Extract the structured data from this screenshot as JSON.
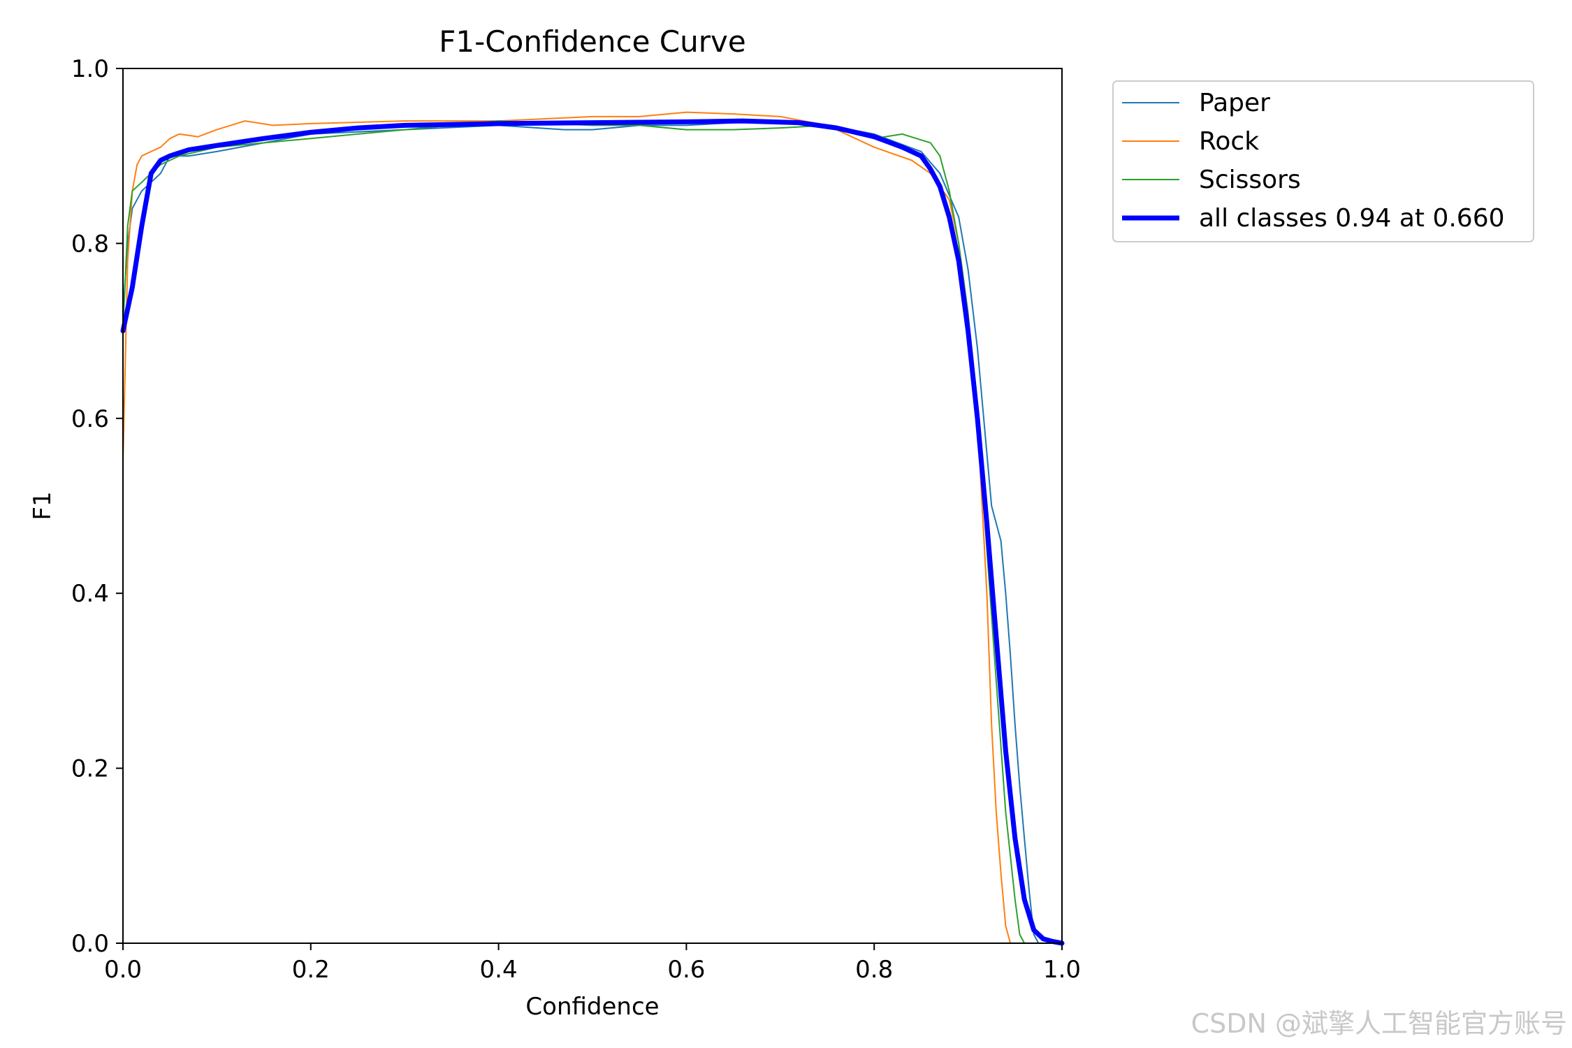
{
  "chart_data": {
    "type": "line",
    "title": "F1-Confidence Curve",
    "xlabel": "Confidence",
    "ylabel": "F1",
    "xlim": [
      0.0,
      1.0
    ],
    "ylim": [
      0.0,
      1.0
    ],
    "xticks": [
      "0.0",
      "0.2",
      "0.4",
      "0.6",
      "0.8",
      "1.0"
    ],
    "yticks": [
      "0.0",
      "0.2",
      "0.4",
      "0.6",
      "0.8",
      "1.0"
    ],
    "grid": false,
    "legend_position": "outside-top-right",
    "series": [
      {
        "name": "Paper",
        "color": "#1f77b4",
        "width": 2,
        "x": [
          0.0,
          0.005,
          0.01,
          0.02,
          0.03,
          0.04,
          0.05,
          0.07,
          0.1,
          0.15,
          0.2,
          0.3,
          0.4,
          0.47,
          0.5,
          0.55,
          0.6,
          0.65,
          0.7,
          0.75,
          0.8,
          0.85,
          0.87,
          0.89,
          0.9,
          0.91,
          0.92,
          0.925,
          0.93,
          0.935,
          0.94,
          0.945,
          0.95,
          0.955,
          0.96,
          0.965,
          0.97,
          0.975
        ],
        "y": [
          0.72,
          0.8,
          0.84,
          0.86,
          0.87,
          0.88,
          0.9,
          0.9,
          0.905,
          0.915,
          0.925,
          0.93,
          0.935,
          0.93,
          0.93,
          0.935,
          0.935,
          0.938,
          0.94,
          0.935,
          0.925,
          0.905,
          0.88,
          0.83,
          0.77,
          0.68,
          0.56,
          0.5,
          0.48,
          0.46,
          0.4,
          0.33,
          0.25,
          0.18,
          0.12,
          0.06,
          0.01,
          0.0
        ]
      },
      {
        "name": "Rock",
        "color": "#ff7f0e",
        "width": 2,
        "x": [
          0.0,
          0.005,
          0.01,
          0.015,
          0.02,
          0.03,
          0.04,
          0.05,
          0.06,
          0.08,
          0.1,
          0.13,
          0.16,
          0.2,
          0.3,
          0.4,
          0.5,
          0.55,
          0.6,
          0.65,
          0.7,
          0.75,
          0.8,
          0.84,
          0.86,
          0.88,
          0.89,
          0.9,
          0.91,
          0.92,
          0.925,
          0.93,
          0.935,
          0.94,
          0.945
        ],
        "y": [
          0.55,
          0.78,
          0.86,
          0.89,
          0.9,
          0.905,
          0.91,
          0.92,
          0.925,
          0.922,
          0.93,
          0.94,
          0.935,
          0.937,
          0.94,
          0.94,
          0.945,
          0.945,
          0.95,
          0.948,
          0.945,
          0.935,
          0.91,
          0.895,
          0.88,
          0.85,
          0.8,
          0.72,
          0.6,
          0.4,
          0.25,
          0.15,
          0.08,
          0.02,
          0.0
        ]
      },
      {
        "name": "Scissors",
        "color": "#2ca02c",
        "width": 2,
        "x": [
          0.0,
          0.005,
          0.01,
          0.02,
          0.03,
          0.04,
          0.06,
          0.08,
          0.1,
          0.15,
          0.2,
          0.3,
          0.4,
          0.5,
          0.55,
          0.6,
          0.65,
          0.7,
          0.75,
          0.8,
          0.83,
          0.86,
          0.87,
          0.88,
          0.89,
          0.9,
          0.91,
          0.92,
          0.93,
          0.94,
          0.95,
          0.955,
          0.96
        ],
        "y": [
          0.7,
          0.82,
          0.86,
          0.87,
          0.88,
          0.89,
          0.9,
          0.905,
          0.91,
          0.915,
          0.92,
          0.93,
          0.94,
          0.935,
          0.935,
          0.93,
          0.93,
          0.932,
          0.935,
          0.92,
          0.925,
          0.915,
          0.9,
          0.86,
          0.8,
          0.72,
          0.6,
          0.45,
          0.3,
          0.15,
          0.05,
          0.01,
          0.0
        ]
      },
      {
        "name": "all classes 0.94 at 0.660",
        "color": "#0000ff",
        "width": 7,
        "x": [
          0.0,
          0.01,
          0.02,
          0.03,
          0.04,
          0.05,
          0.07,
          0.1,
          0.15,
          0.2,
          0.25,
          0.3,
          0.4,
          0.5,
          0.6,
          0.66,
          0.72,
          0.76,
          0.8,
          0.83,
          0.85,
          0.86,
          0.87,
          0.88,
          0.89,
          0.9,
          0.91,
          0.92,
          0.93,
          0.94,
          0.95,
          0.96,
          0.97,
          0.98,
          0.99,
          1.0
        ],
        "y": [
          0.7,
          0.75,
          0.82,
          0.88,
          0.895,
          0.9,
          0.907,
          0.912,
          0.92,
          0.927,
          0.932,
          0.935,
          0.937,
          0.938,
          0.939,
          0.94,
          0.938,
          0.932,
          0.922,
          0.91,
          0.9,
          0.885,
          0.865,
          0.83,
          0.78,
          0.7,
          0.6,
          0.48,
          0.35,
          0.22,
          0.12,
          0.05,
          0.015,
          0.005,
          0.002,
          0.0
        ]
      }
    ]
  },
  "watermark": "CSDN @斌擎人工智能官方账号"
}
